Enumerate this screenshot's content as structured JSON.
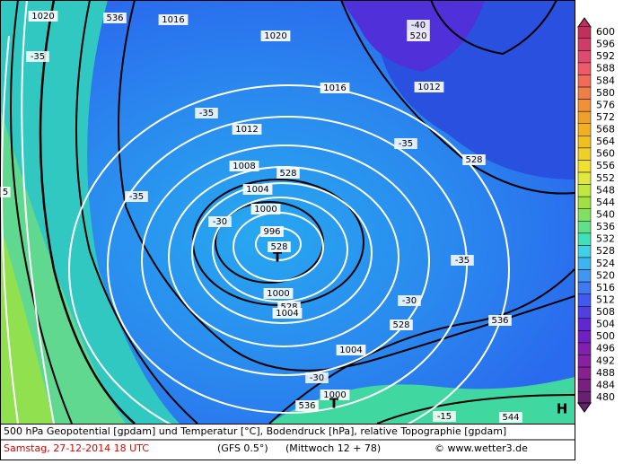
{
  "map": {
    "labels": [
      "1020",
      "536",
      "1016",
      "1020",
      "1016",
      "1012",
      "-35",
      "-35",
      "-35",
      "1008",
      "528",
      "1004",
      "1000",
      "-30",
      "996",
      "T",
      "528",
      "1000",
      "528",
      "1004",
      "-40",
      "520",
      "1012",
      "-35",
      "528",
      "-35",
      "-30",
      "536",
      "528",
      "1004",
      "-30",
      "1000",
      "536",
      "T",
      "-15",
      "544",
      "H",
      "5"
    ]
  },
  "colorbar": {
    "labels": [
      600,
      596,
      592,
      588,
      584,
      580,
      576,
      572,
      568,
      564,
      560,
      556,
      552,
      548,
      544,
      540,
      536,
      532,
      528,
      524,
      520,
      516,
      512,
      508,
      504,
      500,
      496,
      492,
      488,
      484,
      480
    ],
    "colors": [
      "#c0305a",
      "#d03c68",
      "#e04a70",
      "#f05a68",
      "#f06c58",
      "#f07e48",
      "#f09038",
      "#f0a028",
      "#f0b020",
      "#f0c020",
      "#f0d028",
      "#f0e030",
      "#e0e840",
      "#c0e840",
      "#a0e040",
      "#80e060",
      "#60e088",
      "#40e0b8",
      "#40d0e8",
      "#40b4f0",
      "#4096f0",
      "#4078f0",
      "#405af0",
      "#5040e0",
      "#6028d0",
      "#7020c0",
      "#8020b0",
      "#8820a0",
      "#882090",
      "#782080",
      "#682070"
    ]
  },
  "footer": {
    "line1": "500 hPa Geopotential [gpdam] und Temperatur [°C], Bodendruck [hPa], relative Topographie [gpdam]",
    "date": "Samstag, 27-12-2014  18 UTC",
    "model": "(GFS 0.5°)",
    "run": "(Mittwoch 12 + 78)",
    "copyright": "© www.wetter3.de"
  }
}
